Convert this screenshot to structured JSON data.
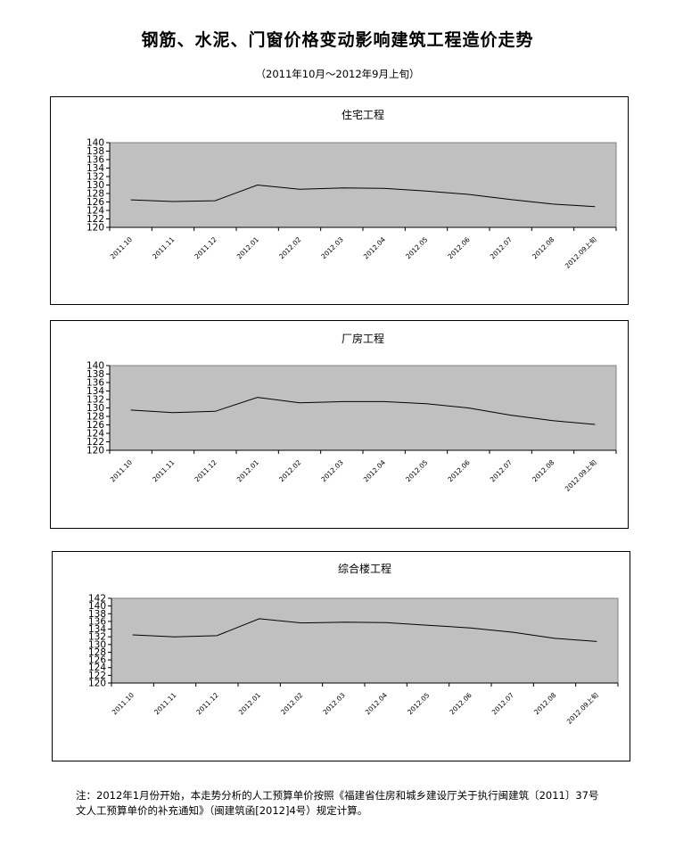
{
  "page": {
    "title": "钢筋、水泥、门窗价格变动影响建筑工程造价走势",
    "subtitle": "（2011年10月～2012年9月上旬）",
    "note_line1": "注：2012年1月份开始，本走势分析的人工预算单价按照《福建省住房和城乡建设厅关于执行闽建筑〔2011〕37号",
    "note_line2": "文人工预算单价的补充通知》（闽建筑函[2012]4号）规定计算。"
  },
  "colors": {
    "plot_bg": "#c0c0c0",
    "line": "#000000",
    "frame": "#000000"
  },
  "chart_data": [
    {
      "type": "line",
      "title": "住宅工程",
      "categories": [
        "2011.10",
        "2011.11",
        "2011.12",
        "2012.01",
        "2012.02",
        "2012.03",
        "2012.04",
        "2012.05",
        "2012.06",
        "2012.07",
        "2012.08",
        "2012.09上旬"
      ],
      "series": [
        {
          "values": [
            126.5,
            126.1,
            126.3,
            130.0,
            129.0,
            129.3,
            129.2,
            128.6,
            127.8,
            126.6,
            125.5,
            124.9
          ]
        }
      ],
      "ylim": [
        120,
        140
      ],
      "yticks": [
        120,
        122,
        124,
        126,
        128,
        130,
        132,
        134,
        136,
        138,
        140
      ],
      "grid": false,
      "legend": "none"
    },
    {
      "type": "line",
      "title": "厂房工程",
      "categories": [
        "2011.10",
        "2011.11",
        "2011.12",
        "2012.01",
        "2012.02",
        "2012.03",
        "2012.04",
        "2012.05",
        "2012.06",
        "2012.07",
        "2012.08",
        "2012.09上旬"
      ],
      "series": [
        {
          "values": [
            129.5,
            128.9,
            129.2,
            132.5,
            131.2,
            131.5,
            131.5,
            131.0,
            130.0,
            128.3,
            127.0,
            126.1
          ]
        }
      ],
      "ylim": [
        120,
        140
      ],
      "yticks": [
        120,
        122,
        124,
        126,
        128,
        130,
        132,
        134,
        136,
        138,
        140
      ],
      "grid": false,
      "legend": "none"
    },
    {
      "type": "line",
      "title": "综合楼工程",
      "categories": [
        "2011.10",
        "2011.11",
        "2011.12",
        "2012.01",
        "2012.02",
        "2012.03",
        "2012.04",
        "2012.05",
        "2012.06",
        "2012.07",
        "2012.08",
        "2012.09上旬"
      ],
      "series": [
        {
          "values": [
            132.5,
            132.0,
            132.3,
            136.7,
            135.6,
            135.8,
            135.7,
            135.0,
            134.3,
            133.2,
            131.6,
            130.8
          ]
        }
      ],
      "ylim": [
        120,
        142
      ],
      "yticks": [
        120,
        122,
        124,
        126,
        128,
        130,
        132,
        134,
        136,
        138,
        140,
        142
      ],
      "grid": false,
      "legend": "none"
    }
  ]
}
